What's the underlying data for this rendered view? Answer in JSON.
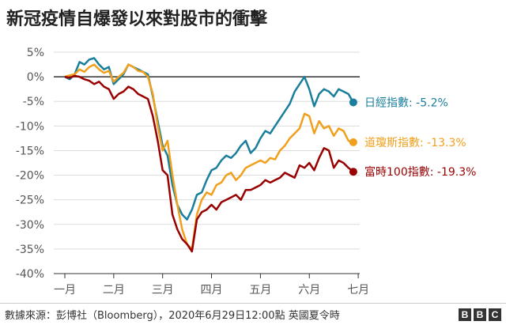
{
  "title": "新冠疫情自爆發以來對股市的衝擊",
  "source": "數據來源：彭博社（Bloomberg），2020年6月29日12:00點 英國夏令時",
  "logo": [
    "B",
    "B",
    "C"
  ],
  "chart_data": {
    "type": "line",
    "title": "新冠疫情自爆發以來對股市的衝擊",
    "xlabel": "",
    "ylabel": "",
    "ylim": [
      -40,
      5
    ],
    "xlim": [
      0,
      5.95
    ],
    "y_ticks": [
      5,
      0,
      -5,
      -10,
      -15,
      -20,
      -25,
      -30,
      -35,
      -40
    ],
    "y_tick_labels": [
      "5%",
      "0%",
      "-5%",
      "-10%",
      "-15%",
      "-20%",
      "-25%",
      "-30%",
      "-35%",
      "-40%"
    ],
    "x_ticks": [
      0,
      1,
      2,
      3,
      4,
      5,
      6
    ],
    "x_tick_labels": [
      "一月",
      "二月",
      "三月",
      "四月",
      "五月",
      "六月",
      "七月"
    ],
    "grid": "horizontal",
    "legend": "end-of-line labels (right)",
    "series": [
      {
        "name": "日經指數",
        "end_label": "日經指數: -5.2%",
        "color": "#1a7f9c",
        "x": [
          0,
          0.1,
          0.2,
          0.3,
          0.4,
          0.5,
          0.6,
          0.7,
          0.8,
          0.9,
          1.0,
          1.1,
          1.2,
          1.3,
          1.4,
          1.5,
          1.6,
          1.7,
          1.8,
          1.9,
          2.0,
          2.1,
          2.2,
          2.3,
          2.4,
          2.5,
          2.6,
          2.7,
          2.8,
          2.9,
          3.0,
          3.1,
          3.2,
          3.3,
          3.4,
          3.5,
          3.6,
          3.7,
          3.8,
          3.9,
          4.0,
          4.1,
          4.2,
          4.3,
          4.4,
          4.5,
          4.6,
          4.7,
          4.8,
          4.9,
          5.0,
          5.1,
          5.2,
          5.3,
          5.4,
          5.5,
          5.6,
          5.7,
          5.8,
          5.9
        ],
        "values": [
          0,
          -0.5,
          0.5,
          3,
          2.5,
          3.5,
          3.8,
          2.5,
          1.5,
          2,
          -1.5,
          -0.5,
          0.5,
          2.5,
          2,
          1.5,
          1,
          0.5,
          -4,
          -9,
          -14,
          -16,
          -22,
          -26,
          -28,
          -29,
          -27,
          -24,
          -23.5,
          -21,
          -19,
          -18.5,
          -17,
          -16,
          -16.5,
          -15.5,
          -14,
          -13,
          -15.5,
          -14.5,
          -12.5,
          -11,
          -11.5,
          -10,
          -8.5,
          -7,
          -5.5,
          -3,
          -1.5,
          0,
          -2.5,
          -6,
          -3.5,
          -2.5,
          -3,
          -4,
          -2.5,
          -3,
          -3.5,
          -5.2
        ]
      },
      {
        "name": "道瓊斯指數",
        "end_label": "道瓊斯指數: -13.3%",
        "color": "#f0a01c",
        "x": [
          0,
          0.1,
          0.2,
          0.3,
          0.4,
          0.5,
          0.6,
          0.7,
          0.8,
          0.9,
          1.0,
          1.1,
          1.2,
          1.3,
          1.4,
          1.5,
          1.6,
          1.7,
          1.8,
          1.9,
          2.0,
          2.1,
          2.2,
          2.3,
          2.4,
          2.5,
          2.6,
          2.7,
          2.8,
          2.9,
          3.0,
          3.1,
          3.2,
          3.3,
          3.4,
          3.5,
          3.6,
          3.7,
          3.8,
          3.9,
          4.0,
          4.1,
          4.2,
          4.3,
          4.4,
          4.5,
          4.6,
          4.7,
          4.8,
          4.9,
          5.0,
          5.1,
          5.2,
          5.3,
          5.4,
          5.5,
          5.6,
          5.7,
          5.8,
          5.9
        ],
        "values": [
          0,
          0.3,
          0.5,
          1.5,
          1,
          2,
          2.5,
          1.5,
          0.8,
          1.2,
          -1,
          0,
          0.8,
          2.5,
          2,
          1.2,
          1,
          0,
          -3.5,
          -10,
          -15,
          -13,
          -20,
          -26,
          -31,
          -34,
          -35,
          -28,
          -25,
          -23.5,
          -24,
          -22,
          -21.5,
          -20,
          -19.5,
          -21,
          -20,
          -18.5,
          -18,
          -17.5,
          -17,
          -17.5,
          -16.5,
          -16.8,
          -15,
          -14,
          -12.5,
          -11.5,
          -10.5,
          -7.5,
          -8,
          -11.5,
          -9,
          -10.5,
          -10,
          -12,
          -10.5,
          -11,
          -13,
          -13.3
        ]
      },
      {
        "name": "富時100指數",
        "end_label": "富時100指數: -19.3%",
        "color": "#990000",
        "x": [
          0,
          0.1,
          0.2,
          0.3,
          0.4,
          0.5,
          0.6,
          0.7,
          0.8,
          0.9,
          1.0,
          1.1,
          1.2,
          1.3,
          1.4,
          1.5,
          1.6,
          1.7,
          1.8,
          1.9,
          2.0,
          2.1,
          2.2,
          2.3,
          2.4,
          2.5,
          2.6,
          2.7,
          2.8,
          2.9,
          3.0,
          3.1,
          3.2,
          3.3,
          3.4,
          3.5,
          3.6,
          3.7,
          3.8,
          3.9,
          4.0,
          4.1,
          4.2,
          4.3,
          4.4,
          4.5,
          4.6,
          4.7,
          4.8,
          4.9,
          5.0,
          5.1,
          5.2,
          5.3,
          5.4,
          5.5,
          5.6,
          5.7,
          5.8,
          5.9
        ],
        "values": [
          0,
          -0.2,
          0.2,
          0,
          -0.5,
          -0.8,
          -1.5,
          -1,
          -2,
          -2.5,
          -4.5,
          -3.5,
          -3,
          -2,
          -2.5,
          -3.5,
          -4,
          -4.5,
          -8,
          -13,
          -19,
          -20,
          -28,
          -31,
          -33,
          -34,
          -35.5,
          -29,
          -27.5,
          -27,
          -26,
          -27,
          -25.5,
          -25,
          -24.5,
          -24,
          -25,
          -23,
          -23,
          -22.5,
          -22,
          -21,
          -21.5,
          -21,
          -20.5,
          -19.5,
          -20,
          -20.5,
          -18,
          -18.5,
          -17.5,
          -19,
          -16.5,
          -14.5,
          -15,
          -18.5,
          -17,
          -17.5,
          -18.5,
          -19.3
        ]
      }
    ]
  }
}
